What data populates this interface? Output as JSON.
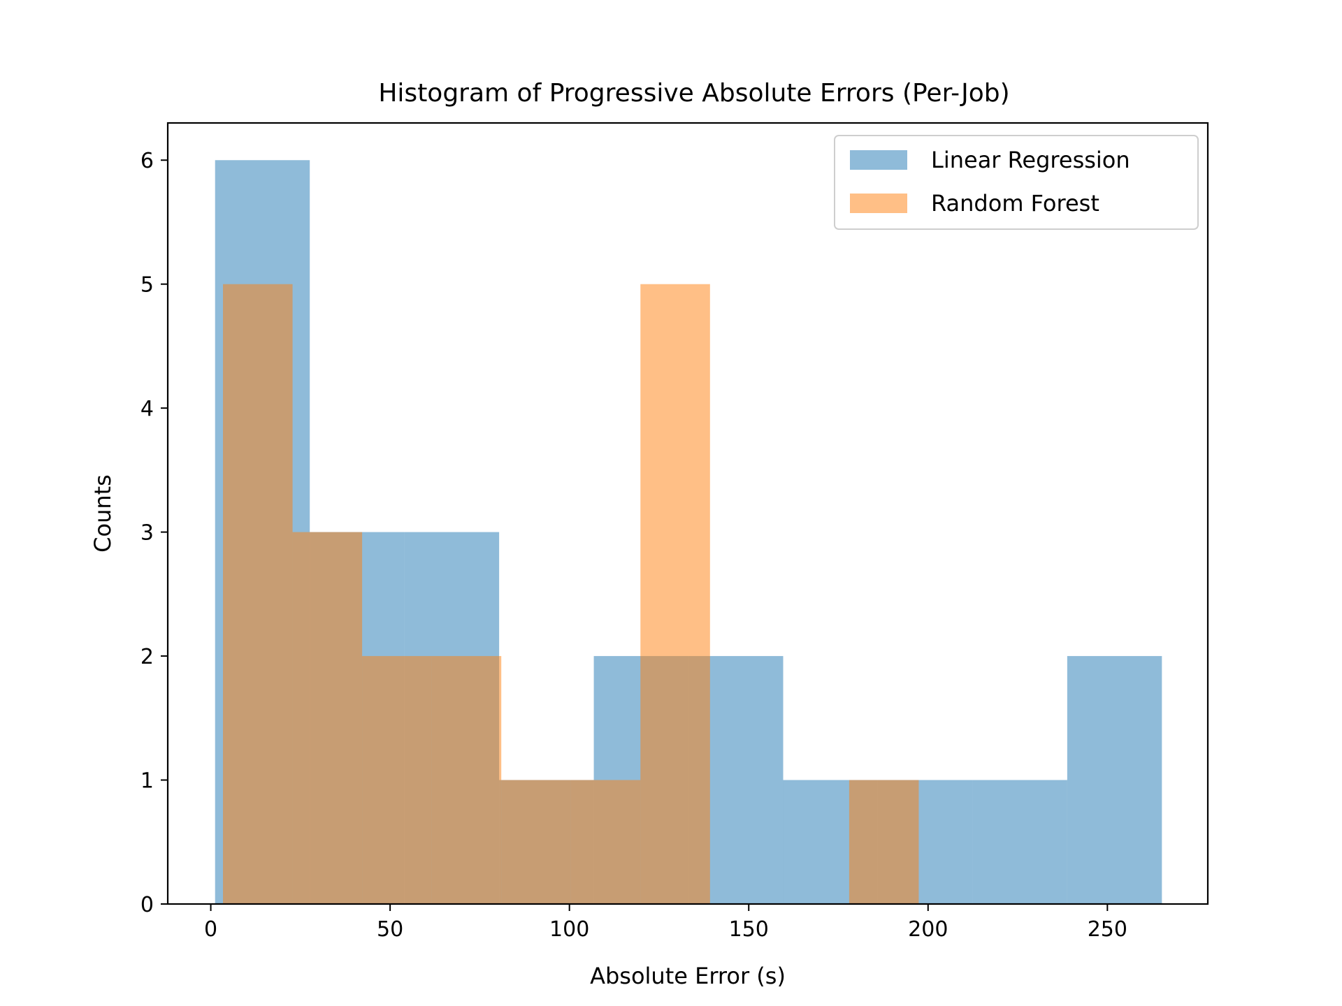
{
  "chart_data": {
    "type": "bar",
    "title": "Histogram of Progressive Absolute Errors (Per-Job)",
    "xlabel": "Absolute Error (s)",
    "ylabel": "Counts",
    "xlim": [
      -12,
      278
    ],
    "ylim": [
      0,
      6.3
    ],
    "xticks": [
      0,
      50,
      100,
      150,
      200,
      250
    ],
    "yticks": [
      0,
      1,
      2,
      3,
      4,
      5,
      6
    ],
    "grid": false,
    "legend_position": "top-right",
    "series": [
      {
        "name": "Linear Regression",
        "color": "#1f77b4",
        "alpha": 0.5,
        "bin_edges": [
          1.2,
          27.6,
          54.0,
          80.4,
          106.8,
          133.2,
          159.6,
          186.0,
          212.4,
          238.8,
          265.2
        ],
        "counts": [
          6,
          3,
          3,
          1,
          2,
          2,
          1,
          1,
          1,
          2
        ]
      },
      {
        "name": "Random Forest",
        "color": "#ff7f0e",
        "alpha": 0.5,
        "bin_edges": [
          3.4,
          22.8,
          42.2,
          61.6,
          81.0,
          100.4,
          119.8,
          139.2,
          158.6,
          178.0,
          197.4
        ],
        "counts": [
          5,
          3,
          2,
          2,
          1,
          1,
          5,
          0,
          0,
          1
        ]
      }
    ]
  }
}
